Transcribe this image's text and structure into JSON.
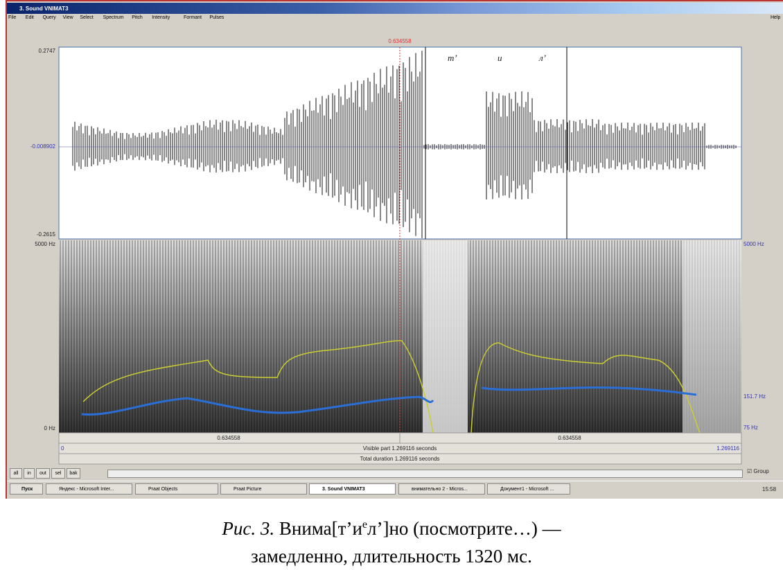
{
  "window": {
    "title": "3. Sound VNIMAT3",
    "menu": [
      "File",
      "Edit",
      "Query",
      "View",
      "Select",
      "Spectrum",
      "Pitch",
      "Intensity",
      "Formant",
      "Pulses"
    ],
    "help": "Help"
  },
  "waveform": {
    "top": "0.2747",
    "middle": "-0.008902",
    "bottom": "-0.2615",
    "cursor": "0.634558",
    "segments": [
      "т’",
      "и",
      "л’"
    ]
  },
  "spectrogram": {
    "left_top": "5000 Hz",
    "left_bottom": "0 Hz",
    "right_top": "5000 Hz",
    "right_pitch": "151.7 Hz",
    "right_bottom": "75 Hz"
  },
  "bars": {
    "left_time": "0.634558",
    "right_time": "0.634558",
    "start": "0",
    "visible": "Visible part 1.269116 seconds",
    "end": "1.269116",
    "total": "Total duration 1.269116 seconds"
  },
  "buttons": [
    "all",
    "in",
    "out",
    "sel",
    "bak"
  ],
  "group": "Group",
  "taskbar": {
    "start": "Пуск",
    "items": [
      "Яндекс - Microsoft Inter...",
      "Praat Objects",
      "Praat Picture",
      "3. Sound VNIMAT3",
      "внимательно 2 - Micros...",
      "Документ1 - Microsoft ..."
    ],
    "clock": "15:58"
  },
  "caption": {
    "label": "Рис. 3.",
    "line1_a": "Внима[т’и",
    "superscript": "е",
    "line1_b": "л’]но (посмотрите…) —",
    "line2": "замедленно, длительность 1320 мс."
  }
}
